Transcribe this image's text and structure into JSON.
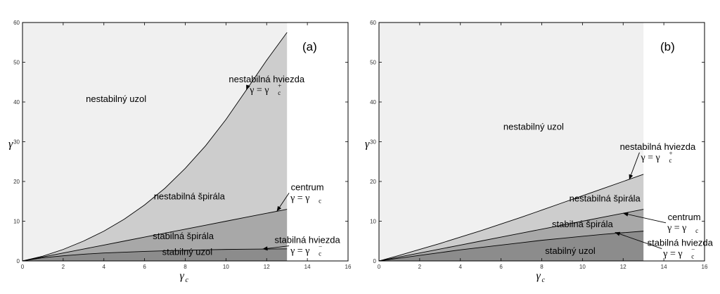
{
  "chart_data": [
    {
      "type": "area",
      "panel_label": "(a)",
      "xlabel": "γ",
      "xlabel_sub": "c",
      "ylabel": "γ",
      "xlim": [
        0,
        16
      ],
      "ylim": [
        0,
        60
      ],
      "xticks": [
        0,
        2,
        4,
        6,
        8,
        10,
        12,
        14,
        16
      ],
      "yticks": [
        0,
        10,
        20,
        30,
        40,
        50,
        60
      ],
      "grid": false,
      "shaded_extent_x": 13,
      "curves": [
        {
          "id": "gamma_plus",
          "x": [
            0,
            1,
            2,
            3,
            4,
            5,
            6,
            7,
            8,
            9,
            10,
            11,
            12,
            13
          ],
          "y": [
            0,
            1.2,
            2.9,
            5.0,
            7.5,
            10.5,
            14.1,
            18.3,
            23.3,
            29.0,
            35.6,
            43.0,
            50.5,
            57.5
          ]
        },
        {
          "id": "gamma_c",
          "x": [
            0,
            1,
            2,
            3,
            4,
            5,
            6,
            7,
            8,
            9,
            10,
            11,
            12,
            13
          ],
          "y": [
            0,
            1.0,
            2.0,
            3.0,
            4.0,
            5.0,
            6.0,
            7.0,
            8.0,
            9.0,
            10.0,
            11.0,
            12.0,
            13.0
          ]
        },
        {
          "id": "gamma_minus",
          "x": [
            0,
            1,
            2,
            3,
            4,
            5,
            6,
            7,
            8,
            9,
            10,
            11,
            12,
            13
          ],
          "y": [
            0,
            0.8,
            1.3,
            1.7,
            2.0,
            2.2,
            2.4,
            2.55,
            2.7,
            2.8,
            2.9,
            2.95,
            3.0,
            3.05
          ]
        }
      ],
      "regions": [
        {
          "label": "nestabilný uzol",
          "color": "#f0f0f0",
          "label_at": [
            4.6,
            40
          ]
        },
        {
          "label": "nestabilná špirála",
          "color": "#cdcdcd",
          "label_at": [
            8.2,
            15.5
          ]
        },
        {
          "label": "stabilná špirála",
          "color": "#a8a8a8",
          "label_at": [
            7.9,
            5.5
          ]
        },
        {
          "label": "stabilný uzol",
          "color": "#8c8c8c",
          "label_at": [
            8.1,
            1.5
          ]
        }
      ],
      "annotations": [
        {
          "text": "nestabilná hviezda",
          "math": "γ = γ",
          "math_sub": "c",
          "math_sup": "+",
          "text_at": [
            12.0,
            45
          ],
          "arrow_to": [
            11.0,
            43
          ]
        },
        {
          "text": "centrum",
          "math": "γ = γ",
          "math_sub": "c",
          "math_sup": "",
          "text_at": [
            14.0,
            17.8
          ],
          "arrow_to": [
            12.5,
            12.5
          ]
        },
        {
          "text": "stabilná hviezda",
          "math": "γ = γ",
          "math_sub": "c",
          "math_sup": "−",
          "text_at": [
            14.0,
            4.5
          ],
          "arrow_to": [
            11.8,
            3.0
          ]
        }
      ]
    },
    {
      "type": "area",
      "panel_label": "(b)",
      "xlabel": "γ",
      "xlabel_sub": "c",
      "ylabel": "γ",
      "xlim": [
        0,
        16
      ],
      "ylim": [
        0,
        60
      ],
      "xticks": [
        0,
        2,
        4,
        6,
        8,
        10,
        12,
        14,
        16
      ],
      "yticks": [
        0,
        10,
        20,
        30,
        40,
        50,
        60
      ],
      "grid": false,
      "shaded_extent_x": 13,
      "curves": [
        {
          "id": "gamma_plus",
          "x": [
            0,
            1,
            2,
            3,
            4,
            5,
            6,
            7,
            8,
            9,
            10,
            11,
            12,
            13
          ],
          "y": [
            0,
            1.4,
            2.9,
            4.4,
            6.0,
            7.6,
            9.3,
            11.0,
            12.8,
            14.6,
            16.4,
            18.2,
            20.0,
            21.8
          ]
        },
        {
          "id": "gamma_c",
          "x": [
            0,
            1,
            2,
            3,
            4,
            5,
            6,
            7,
            8,
            9,
            10,
            11,
            12,
            13
          ],
          "y": [
            0,
            1.0,
            2.0,
            3.0,
            4.0,
            5.0,
            6.0,
            7.0,
            8.0,
            9.0,
            10.0,
            11.0,
            12.0,
            13.0
          ]
        },
        {
          "id": "gamma_minus",
          "x": [
            0,
            1,
            2,
            3,
            4,
            5,
            6,
            7,
            8,
            9,
            10,
            11,
            12,
            13
          ],
          "y": [
            0,
            0.7,
            1.4,
            2.1,
            2.8,
            3.4,
            4.0,
            4.6,
            5.2,
            5.7,
            6.2,
            6.7,
            7.1,
            7.5
          ]
        }
      ],
      "regions": [
        {
          "label": "nestabilný uzol",
          "color": "#f0f0f0",
          "label_at": [
            7.6,
            33
          ]
        },
        {
          "label": "nestabilná špirála",
          "color": "#cdcdcd",
          "label_at": [
            11.1,
            15
          ]
        },
        {
          "label": "stabilná špirála",
          "color": "#a8a8a8",
          "label_at": [
            10.0,
            8.5
          ]
        },
        {
          "label": "stabilný uzol",
          "color": "#8c8c8c",
          "label_at": [
            9.4,
            1.8
          ]
        }
      ],
      "annotations": [
        {
          "text": "nestabilná hviezda",
          "math": "γ = γ",
          "math_sub": "c",
          "math_sup": "+",
          "text_at": [
            13.7,
            28
          ],
          "arrow_to": [
            12.3,
            20.5
          ]
        },
        {
          "text": "centrum",
          "math": "γ = γ",
          "math_sub": "c",
          "math_sup": "",
          "text_at": [
            15.0,
            10.3
          ],
          "arrow_to": [
            12.0,
            12.0
          ]
        },
        {
          "text": "stabilná hviezda",
          "math": "γ = γ",
          "math_sub": "c",
          "math_sup": "−",
          "text_at": [
            14.8,
            3.8
          ],
          "arrow_to": [
            11.6,
            7.2
          ]
        }
      ]
    }
  ]
}
